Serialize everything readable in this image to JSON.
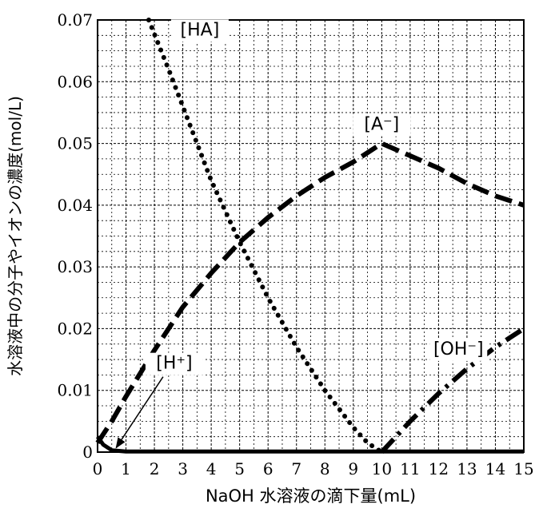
{
  "chart_data": {
    "type": "line",
    "xlabel": "NaOH 水溶液の滴下量(mL)",
    "ylabel": "水溶液中の分子やイオンの濃度(mol/L)",
    "xlim": [
      0,
      15
    ],
    "ylim": [
      0,
      0.07
    ],
    "x_ticks": [
      "0",
      "1",
      "2",
      "3",
      "4",
      "5",
      "6",
      "7",
      "8",
      "9",
      "10",
      "11",
      "12",
      "13",
      "14",
      "15"
    ],
    "y_ticks": [
      "0",
      "0.01",
      "0.02",
      "0.03",
      "0.04",
      "0.05",
      "0.06",
      "0.07"
    ],
    "grid": true,
    "series": [
      {
        "name": "[HA]",
        "style": "dotted",
        "points": [
          [
            1.8,
            0.07
          ],
          [
            2.5,
            0.062
          ],
          [
            3,
            0.056
          ],
          [
            4,
            0.044
          ],
          [
            5,
            0.034
          ],
          [
            6,
            0.025
          ],
          [
            7,
            0.017
          ],
          [
            8,
            0.01
          ],
          [
            9,
            0.004
          ],
          [
            9.5,
            0.0015
          ],
          [
            10,
            0
          ]
        ]
      },
      {
        "name": "[A⁻]",
        "style": "dashed",
        "points": [
          [
            0,
            0.0015
          ],
          [
            0.5,
            0.005
          ],
          [
            1,
            0.009
          ],
          [
            2,
            0.0165
          ],
          [
            3,
            0.0235
          ],
          [
            4,
            0.029
          ],
          [
            5,
            0.034
          ],
          [
            6,
            0.038
          ],
          [
            7,
            0.0415
          ],
          [
            8,
            0.0445
          ],
          [
            9,
            0.047
          ],
          [
            10,
            0.05
          ],
          [
            11,
            0.048
          ],
          [
            12,
            0.046
          ],
          [
            13,
            0.0435
          ],
          [
            14,
            0.0415
          ],
          [
            15,
            0.04
          ]
        ]
      },
      {
        "name": "[OH⁻]",
        "style": "dashdot",
        "points": [
          [
            10,
            0
          ],
          [
            11,
            0.005
          ],
          [
            12,
            0.0095
          ],
          [
            13,
            0.0135
          ],
          [
            14,
            0.017
          ],
          [
            15,
            0.02
          ]
        ]
      },
      {
        "name": "[H⁺]",
        "style": "solid",
        "points": [
          [
            0,
            0.0025
          ],
          [
            0.2,
            0.0012
          ],
          [
            0.5,
            0.0003
          ],
          [
            1,
            0.0001
          ],
          [
            15,
            0.0001
          ]
        ]
      }
    ],
    "annotations": [
      {
        "text": "[HA]",
        "x": 3.6,
        "y": 0.0675
      },
      {
        "text": "[A⁻]",
        "x": 10.0,
        "y": 0.0522
      },
      {
        "text": "[OH⁻]",
        "x": 12.7,
        "y": 0.0158
      },
      {
        "text": "[H⁺]",
        "x": 2.7,
        "y": 0.0135,
        "arrow_to": [
          0.6,
          0.0002
        ]
      }
    ]
  }
}
